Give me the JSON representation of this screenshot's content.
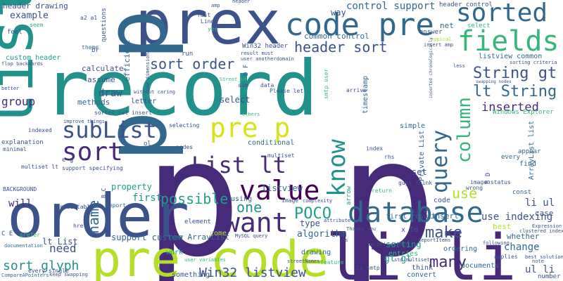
{
  "wordcloud": {
    "background": "#ffffff",
    "palette": {
      "purple": "#472a7a",
      "indigo": "#3b528b",
      "blue": "#31688e",
      "teal": "#21918c",
      "cyan": "#1f9e89",
      "green": "#35b779",
      "lime": "#b5de2b",
      "yellow": "#d8e219",
      "dark": "#440154"
    },
    "words": [
      "record",
      "p p",
      "order",
      "li li",
      "pre code",
      "list",
      "prex",
      "code pre",
      "sorted",
      "database",
      "fields",
      "value",
      "want",
      "pre p",
      "know",
      "query",
      "column",
      "List lt",
      "subList",
      "sort",
      "header sort",
      "String gt",
      "lt String",
      "inserted",
      "sort order",
      "use",
      "POCO",
      "make",
      "many",
      "sort glyph",
      "Win32 listview",
      "one",
      "name",
      "possible",
      "control support",
      "common control",
      "header drawing",
      "example",
      "custom header",
      "will",
      "need",
      "group",
      "draw",
      "first",
      "listview",
      "lt List",
      "algorithm",
      "type",
      "support custom",
      "new ArrayList",
      "gt gt",
      "sorting",
      "entries",
      "change",
      "use indexing",
      "ul li",
      "li ul",
      "case",
      "set",
      "code",
      "first result",
      "insert",
      "select",
      "timestamp",
      "efficient",
      "calculate",
      "assume",
      "methods",
      "letter",
      "property",
      "listview common",
      "Windows Explorer",
      "documents",
      "whether",
      "simple",
      "conditional",
      "something",
      "work",
      "drawing",
      "best",
      "Private List",
      "ArrayList list",
      "every",
      "appear",
      "find",
      "const",
      "ordering",
      "convert",
      "think",
      "way",
      "net",
      "answer",
      "sorted_set insert",
      "Please let",
      "smtp user",
      "Win32 header",
      "header control",
      "yes",
      "fast",
      "Linq",
      "questions",
      "theme",
      "br",
      "run",
      "feel",
      "seem",
      "index",
      "rhs",
      "return",
      "wrong",
      "care",
      "arrow",
      "using",
      "image",
      "complexity",
      "Report",
      "predictable",
      "nodes",
      "selecting",
      "explanation",
      "minimal",
      "BACKGROUND",
      "indexed",
      "others",
      "sum",
      "data",
      "arrive",
      "element",
      "come",
      "Thanks you",
      "sorted without",
      "lhs",
      "feature",
      "keep swapping",
      "CompareAPointers",
      "every single",
      "documentation",
      "prefer",
      "href",
      "MySQL query",
      "user variables",
      "streetNames",
      "attribute",
      "Expression",
      "note",
      "applies",
      "best solution",
      "number",
      "following",
      "clustered index",
      "ReportItems",
      "std multiset",
      "x Id",
      "li smtp",
      "guys think",
      "image status",
      "multiset lt",
      "improve things",
      "without caring",
      "one dimensional",
      "a2 a1",
      "amp",
      "C E",
      "B D",
      "D F",
      "B C",
      "e g",
      "ol",
      "fast",
      "typical",
      "insert amp",
      "sorting criteria",
      "swapping nodes",
      "Street_id",
      "result must",
      "user anotherdomain",
      "inserted chronologically",
      "less",
      "header",
      "flop backwards",
      "better",
      "list lt",
      "select",
      "support specifying",
      "multiset",
      "keep",
      "sort",
      "using"
    ]
  }
}
